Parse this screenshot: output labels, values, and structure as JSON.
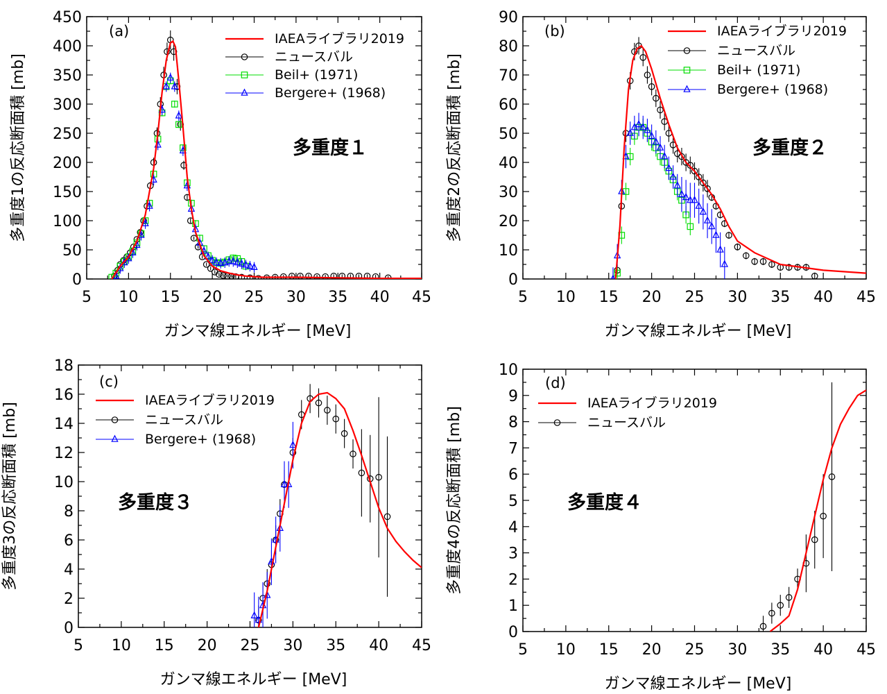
{
  "chart_data": [
    {
      "type": "line",
      "panel_label": "(a)",
      "annotation": "多重度１",
      "xlabel": "ガンマ線エネルギー [MeV]",
      "ylabel": "多重度1の反応断面積 [mb]",
      "xlim": [
        5,
        45
      ],
      "ylim": [
        0,
        450
      ],
      "xticks": [
        5,
        10,
        15,
        20,
        25,
        30,
        35,
        40,
        45
      ],
      "yticks": [
        0,
        50,
        100,
        150,
        200,
        250,
        300,
        350,
        400,
        450
      ],
      "grid": false,
      "legend_position": "top-right",
      "series": [
        {
          "name": "IAEAライブラリ2019",
          "kind": "curve",
          "color": "#ff0000",
          "x": [
            8,
            9,
            10,
            11,
            12,
            13,
            13.5,
            14,
            14.5,
            15,
            15.3,
            15.6,
            16,
            16.5,
            17,
            17.5,
            18,
            19,
            20,
            21,
            22,
            23,
            24,
            25,
            26,
            28,
            30,
            35,
            40,
            45
          ],
          "y": [
            0,
            22,
            38,
            65,
            110,
            190,
            250,
            320,
            375,
            405,
            408,
            398,
            340,
            260,
            175,
            120,
            80,
            40,
            22,
            14,
            10,
            7,
            5,
            4,
            3,
            3,
            3,
            2,
            1,
            1
          ]
        },
        {
          "name": "ニュースバル",
          "kind": "points",
          "marker": "circle",
          "color": "#000000",
          "x": [
            8.3,
            8.7,
            9.0,
            9.4,
            9.8,
            10.2,
            10.6,
            11.0,
            11.4,
            11.8,
            12.2,
            12.6,
            13.0,
            13.4,
            13.8,
            14.2,
            14.6,
            15.0,
            15.4,
            15.8,
            16.2,
            16.6,
            17.0,
            17.4,
            17.8,
            18.3,
            18.8,
            19.3,
            19.8,
            20.3,
            20.8,
            21.3,
            21.8,
            22.3,
            22.8,
            23.5,
            24.5,
            25.5,
            26.5,
            27.5,
            28.5,
            29.5,
            30.5,
            31.5,
            32.5,
            33.5,
            34.5,
            35.5,
            36.5,
            37.5,
            38.5,
            39.5,
            41.0
          ],
          "y": [
            5,
            15,
            25,
            32,
            38,
            45,
            55,
            68,
            80,
            100,
            125,
            160,
            200,
            250,
            300,
            350,
            390,
            410,
            390,
            330,
            265,
            195,
            140,
            100,
            70,
            55,
            38,
            25,
            18,
            12,
            8,
            6,
            5,
            5,
            4,
            3,
            2,
            1,
            2,
            3,
            4,
            5,
            5,
            5,
            4,
            4,
            5,
            5,
            5,
            5,
            5,
            4,
            2
          ]
        },
        {
          "name": "Beil+ (1971)",
          "kind": "points",
          "marker": "square",
          "color": "#00dd00",
          "x": [
            8.0,
            8.5,
            9.0,
            9.5,
            10.0,
            10.5,
            11.0,
            11.5,
            12.0,
            12.5,
            13.0,
            13.5,
            14.0,
            14.5,
            15.0,
            15.5,
            16.0,
            16.5,
            17.0,
            17.5,
            18.0,
            18.5,
            19.0,
            19.5,
            20.0,
            20.5,
            21.0,
            21.5,
            22.0,
            22.5,
            23.0,
            23.5,
            24.0
          ],
          "y": [
            3,
            10,
            22,
            30,
            38,
            48,
            62,
            78,
            100,
            130,
            180,
            240,
            285,
            330,
            340,
            300,
            265,
            225,
            165,
            130,
            95,
            70,
            52,
            40,
            32,
            28,
            27,
            29,
            33,
            36,
            35,
            30,
            22
          ]
        },
        {
          "name": "Bergere+ (1968)",
          "kind": "points",
          "marker": "triangle",
          "color": "#0000ff",
          "x": [
            8.5,
            9.0,
            9.5,
            10.0,
            10.5,
            11.0,
            11.5,
            12.0,
            12.5,
            13.0,
            13.5,
            14.0,
            14.5,
            15.0,
            15.5,
            16.0,
            16.5,
            17.0,
            17.5,
            18.0,
            18.5,
            19.0,
            19.5,
            20.0,
            20.5,
            21.0,
            21.5,
            22.0,
            22.5,
            23.0,
            23.5,
            24.0,
            24.5,
            25.0
          ],
          "y": [
            5,
            18,
            28,
            35,
            45,
            58,
            75,
            95,
            125,
            170,
            230,
            290,
            330,
            345,
            330,
            280,
            220,
            160,
            120,
            85,
            62,
            48,
            38,
            32,
            28,
            27,
            28,
            30,
            30,
            28,
            26,
            24,
            22,
            20
          ]
        }
      ]
    },
    {
      "type": "line",
      "panel_label": "(b)",
      "annotation": "多重度２",
      "xlabel": "ガンマ線エネルギー [MeV]",
      "ylabel": "多重度2の反応断面積 [mb]",
      "xlim": [
        5,
        45
      ],
      "ylim": [
        0,
        90
      ],
      "xticks": [
        5,
        10,
        15,
        20,
        25,
        30,
        35,
        40,
        45
      ],
      "yticks": [
        0,
        10,
        20,
        30,
        40,
        50,
        60,
        70,
        80,
        90
      ],
      "grid": false,
      "legend_position": "top-right",
      "series": [
        {
          "name": "IAEAライブラリ2019",
          "kind": "curve",
          "color": "#ff0000",
          "x": [
            15.8,
            16.3,
            16.8,
            17.3,
            17.8,
            18.3,
            18.8,
            19.3,
            20,
            21,
            22,
            23,
            24,
            25,
            26,
            27,
            28,
            29,
            30,
            32,
            35,
            40,
            45
          ],
          "y": [
            0,
            18,
            45,
            65,
            75,
            79,
            80,
            78,
            72,
            62,
            53,
            45,
            40,
            37,
            33,
            29,
            24,
            18,
            13,
            9,
            5,
            3,
            2
          ]
        },
        {
          "name": "ニュースバル",
          "kind": "points",
          "marker": "circle",
          "color": "#000000",
          "x": [
            16.0,
            16.5,
            17.0,
            17.5,
            18.0,
            18.5,
            19.0,
            19.5,
            20.0,
            20.5,
            21.0,
            21.5,
            22.0,
            22.5,
            23.0,
            23.5,
            24.0,
            24.5,
            25.0,
            25.5,
            26.0,
            26.5,
            27.0,
            27.5,
            28.0,
            28.5,
            29.0,
            30.0,
            31.0,
            32.0,
            33.0,
            34.0,
            35.0,
            36.0,
            37.0,
            38.0,
            39.0
          ],
          "y": [
            3,
            25,
            50,
            68,
            78,
            80,
            76,
            70,
            66,
            62,
            58,
            54,
            50,
            46,
            43,
            42,
            40,
            39,
            37,
            35,
            33,
            31,
            28,
            25,
            22,
            19,
            15,
            11,
            8,
            6,
            6,
            5,
            4,
            4,
            4,
            4,
            1
          ]
        },
        {
          "name": "Beil+ (1971)",
          "kind": "points",
          "marker": "square",
          "color": "#00dd00",
          "x": [
            16.0,
            16.5,
            17.0,
            17.5,
            18.0,
            18.5,
            19.0,
            19.5,
            20.0,
            20.5,
            21.0,
            21.5,
            22.0,
            22.5,
            23.0,
            23.5,
            24.0,
            24.5
          ],
          "y": [
            2,
            15,
            30,
            42,
            49,
            52,
            52,
            50,
            47,
            45,
            42,
            40,
            37,
            34,
            30,
            27,
            22,
            18
          ]
        },
        {
          "name": "Bergere+ (1968)",
          "kind": "points",
          "marker": "triangle",
          "color": "#0000ff",
          "x": [
            15.5,
            16.0,
            16.5,
            17.0,
            17.5,
            18.0,
            18.5,
            19.0,
            19.5,
            20.0,
            20.5,
            21.0,
            21.5,
            22.0,
            22.5,
            23.0,
            23.5,
            24.0,
            24.5,
            25.0,
            25.5,
            26.0,
            26.5,
            27.0,
            27.5,
            28.0,
            28.5
          ],
          "y": [
            0,
            8,
            30,
            42,
            50,
            52,
            53,
            52,
            51,
            49,
            47,
            45,
            42,
            38,
            35,
            32,
            29,
            28,
            27,
            27,
            25,
            23,
            20,
            18,
            15,
            10,
            5
          ]
        }
      ]
    },
    {
      "type": "line",
      "panel_label": "(c)",
      "annotation": "多重度３",
      "xlabel": "ガンマ線エネルギー [MeV]",
      "ylabel": "多重度3の反応断面積 [mb]",
      "xlim": [
        5,
        45
      ],
      "ylim": [
        0,
        18
      ],
      "xticks": [
        5,
        10,
        15,
        20,
        25,
        30,
        35,
        40,
        45
      ],
      "yticks": [
        0,
        2,
        4,
        6,
        8,
        10,
        12,
        14,
        16,
        18
      ],
      "grid": false,
      "legend_position": "top-left",
      "series": [
        {
          "name": "IAEAライブラリ2019",
          "kind": "curve",
          "color": "#ff0000",
          "x": [
            26,
            27,
            28,
            29,
            30,
            31,
            32,
            33,
            34,
            35,
            36,
            37,
            38,
            39,
            40,
            41,
            42,
            43,
            44,
            45
          ],
          "y": [
            0,
            2.5,
            5.5,
            8.5,
            11.5,
            14,
            15.5,
            16,
            16.1,
            15.7,
            15,
            13.5,
            11.8,
            10,
            8.2,
            6.8,
            5.9,
            5.2,
            4.6,
            4.1
          ]
        },
        {
          "name": "ニュースバル",
          "kind": "points",
          "marker": "circle",
          "color": "#000000",
          "x": [
            26.0,
            26.5,
            27.0,
            27.5,
            28.0,
            28.5,
            29.0,
            30.0,
            31.0,
            32.0,
            33.0,
            34.0,
            35.0,
            36.0,
            37.0,
            38.0,
            39.0,
            40.0,
            41.0
          ],
          "y": [
            0.5,
            2.0,
            3.0,
            4.3,
            6.0,
            7.8,
            9.8,
            12.0,
            14.6,
            15.7,
            15.4,
            14.9,
            14.3,
            13.3,
            11.9,
            10.6,
            10.2,
            10.3,
            7.6
          ]
        },
        {
          "name": "Bergere+ (1968)",
          "kind": "points",
          "marker": "triangle",
          "color": "#0000ff",
          "x": [
            25.5,
            26.0,
            26.5,
            27.0,
            27.5,
            28.0,
            28.5,
            29.0,
            29.5,
            30.0
          ],
          "y": [
            0.8,
            0.5,
            1.5,
            2.2,
            4.5,
            6.0,
            6.8,
            9.8,
            9.8,
            12.5
          ]
        }
      ]
    },
    {
      "type": "line",
      "panel_label": "(d)",
      "annotation": "多重度４",
      "xlabel": "ガンマ線エネルギー [MeV]",
      "ylabel": "多重度4の反応断面積 [mb]",
      "xlim": [
        5,
        45
      ],
      "ylim": [
        0,
        10
      ],
      "xticks": [
        5,
        10,
        15,
        20,
        25,
        30,
        35,
        40,
        45
      ],
      "yticks": [
        0,
        1,
        2,
        3,
        4,
        5,
        6,
        7,
        8,
        9,
        10
      ],
      "grid": false,
      "legend_position": "top-left",
      "series": [
        {
          "name": "IAEAライブラリ2019",
          "kind": "curve",
          "color": "#ff0000",
          "x": [
            33.8,
            35,
            36,
            37,
            38,
            39,
            40,
            41,
            42,
            43,
            44,
            45
          ],
          "y": [
            0,
            0.3,
            0.6,
            1.6,
            3.0,
            4.4,
            5.8,
            7.0,
            7.9,
            8.5,
            9.0,
            9.2
          ]
        },
        {
          "name": "ニュースバル",
          "kind": "points",
          "marker": "circle",
          "color": "#000000",
          "x": [
            33.0,
            34.0,
            35.0,
            36.0,
            37.0,
            38.0,
            39.0,
            40.0,
            41.0
          ],
          "y": [
            0.2,
            0.7,
            1.0,
            1.3,
            2.0,
            2.6,
            3.5,
            4.4,
            5.9
          ]
        }
      ]
    }
  ]
}
